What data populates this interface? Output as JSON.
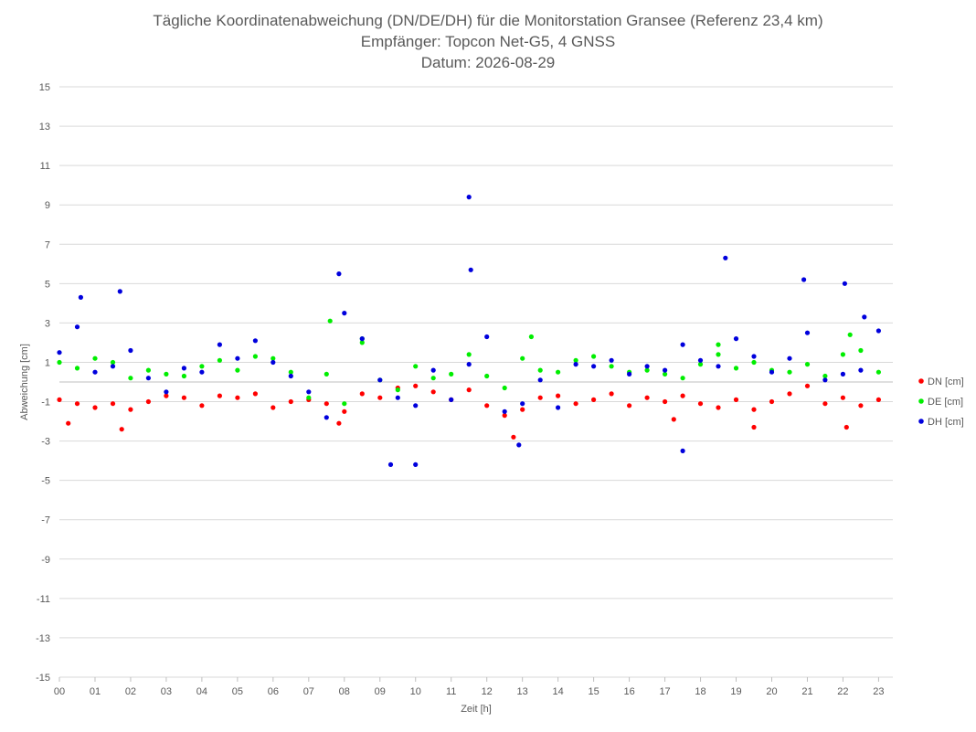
{
  "chart_data": {
    "type": "scatter",
    "title": "Tägliche Koordinatenabweichung (DN/DE/DH) für die Monitorstation Gransee (Referenz 23,4 km)",
    "subtitle": "Empfänger: Topcon Net-G5, 4 GNSS",
    "subtitle2": "Datum: 2026-08-29",
    "xlabel": "Zeit [h]",
    "ylabel": "Abweichung [cm]",
    "xlim": [
      0,
      23.4
    ],
    "ylim": [
      -15,
      15
    ],
    "yticks": [
      -15,
      -13,
      -11,
      -9,
      -7,
      -5,
      -3,
      -1,
      1,
      3,
      5,
      7,
      9,
      11,
      13,
      15
    ],
    "xticks": [
      "00",
      "01",
      "02",
      "03",
      "04",
      "05",
      "06",
      "07",
      "08",
      "09",
      "10",
      "11",
      "12",
      "13",
      "14",
      "15",
      "16",
      "17",
      "18",
      "19",
      "20",
      "21",
      "22",
      "23"
    ],
    "grid": "horizontal",
    "legend_position": "right",
    "series": [
      {
        "name": "DN [cm]",
        "color": "#ff0000",
        "x": [
          0.0,
          0.5,
          1.0,
          1.5,
          2.0,
          2.5,
          3.0,
          3.5,
          4.0,
          4.5,
          5.0,
          5.5,
          6.0,
          6.5,
          7.0,
          7.5,
          8.0,
          8.5,
          9.0,
          9.5,
          10.0,
          10.5,
          11.0,
          11.5,
          12.0,
          12.5,
          13.0,
          13.5,
          14.0,
          14.5,
          15.0,
          15.5,
          16.0,
          16.5,
          17.0,
          17.5,
          18.0,
          18.5,
          19.0,
          19.5,
          20.0,
          20.5,
          21.0,
          21.5,
          22.0,
          22.5,
          23.0,
          0.25,
          1.75,
          7.85,
          12.75,
          17.25,
          19.5,
          22.1
        ],
        "y": [
          -0.9,
          -1.1,
          -1.3,
          -1.1,
          -1.4,
          -1.0,
          -0.7,
          -0.8,
          -1.2,
          -0.7,
          -0.8,
          -0.6,
          -1.3,
          -1.0,
          -0.9,
          -1.1,
          -1.5,
          -0.6,
          -0.8,
          -0.3,
          -0.2,
          -0.5,
          -0.9,
          -0.4,
          -1.2,
          -1.7,
          -1.4,
          -0.8,
          -0.7,
          -1.1,
          -0.9,
          -0.6,
          -1.2,
          -0.8,
          -1.0,
          -0.7,
          -1.1,
          -1.3,
          -0.9,
          -1.4,
          -1.0,
          -0.6,
          -0.2,
          -1.1,
          -0.8,
          -1.2,
          -0.9,
          -2.1,
          -2.4,
          -2.1,
          -2.8,
          -1.9,
          -2.3,
          -2.3
        ]
      },
      {
        "name": "DE [cm]",
        "color": "#00ee00",
        "x": [
          0.0,
          0.5,
          1.0,
          1.5,
          2.0,
          2.5,
          3.0,
          3.5,
          4.0,
          4.5,
          5.0,
          5.5,
          6.0,
          6.5,
          7.0,
          7.5,
          8.0,
          8.5,
          9.0,
          9.5,
          10.0,
          10.5,
          11.0,
          11.5,
          12.0,
          12.5,
          13.0,
          13.5,
          14.0,
          14.5,
          15.0,
          15.5,
          16.0,
          16.5,
          17.0,
          17.5,
          18.0,
          18.5,
          19.0,
          19.5,
          20.0,
          20.5,
          21.0,
          21.5,
          22.0,
          22.5,
          23.0,
          7.6,
          8.5,
          13.25,
          18.5,
          22.2
        ],
        "y": [
          1.0,
          0.7,
          1.2,
          1.0,
          0.2,
          0.6,
          0.4,
          0.3,
          0.8,
          1.1,
          0.6,
          1.3,
          1.2,
          0.5,
          -0.8,
          0.4,
          -1.1,
          2.0,
          0.1,
          -0.4,
          0.8,
          0.2,
          0.4,
          1.4,
          0.3,
          -0.3,
          1.2,
          0.6,
          0.5,
          1.1,
          1.3,
          0.8,
          0.5,
          0.6,
          0.4,
          0.2,
          0.9,
          1.4,
          0.7,
          1.0,
          0.6,
          0.5,
          0.9,
          0.3,
          1.4,
          1.6,
          0.5,
          3.1,
          2.2,
          2.3,
          1.9,
          2.4
        ]
      },
      {
        "name": "DH [cm]",
        "color": "#0000dd",
        "x": [
          0.0,
          0.5,
          1.0,
          1.5,
          2.0,
          2.5,
          3.0,
          3.5,
          4.0,
          4.5,
          5.0,
          5.5,
          6.0,
          6.5,
          7.0,
          7.5,
          8.0,
          8.5,
          9.0,
          9.5,
          10.0,
          10.5,
          11.0,
          11.5,
          12.0,
          12.5,
          13.0,
          13.5,
          14.0,
          14.5,
          15.0,
          15.5,
          16.0,
          16.5,
          17.0,
          17.5,
          18.0,
          18.5,
          19.0,
          19.5,
          20.0,
          20.5,
          21.0,
          21.5,
          22.0,
          22.5,
          23.0,
          0.6,
          1.7,
          7.85,
          9.3,
          10.0,
          11.55,
          11.5,
          12.9,
          17.5,
          18.7,
          20.9,
          22.05,
          22.6
        ],
        "y": [
          1.5,
          2.8,
          0.5,
          0.8,
          1.6,
          0.2,
          -0.5,
          0.7,
          0.5,
          1.9,
          1.2,
          2.1,
          1.0,
          0.3,
          -0.5,
          -1.8,
          3.5,
          2.2,
          0.1,
          -0.8,
          -1.2,
          0.6,
          -0.9,
          0.9,
          2.3,
          -1.5,
          -1.1,
          0.1,
          -1.3,
          0.9,
          0.8,
          1.1,
          0.4,
          0.8,
          0.6,
          1.9,
          1.1,
          0.8,
          2.2,
          1.3,
          0.5,
          1.2,
          2.5,
          0.1,
          0.4,
          0.6,
          2.6,
          4.3,
          4.6,
          5.5,
          -4.2,
          -4.2,
          5.7,
          9.4,
          -3.2,
          -3.5,
          6.3,
          5.2,
          5.0,
          3.3
        ]
      }
    ]
  }
}
